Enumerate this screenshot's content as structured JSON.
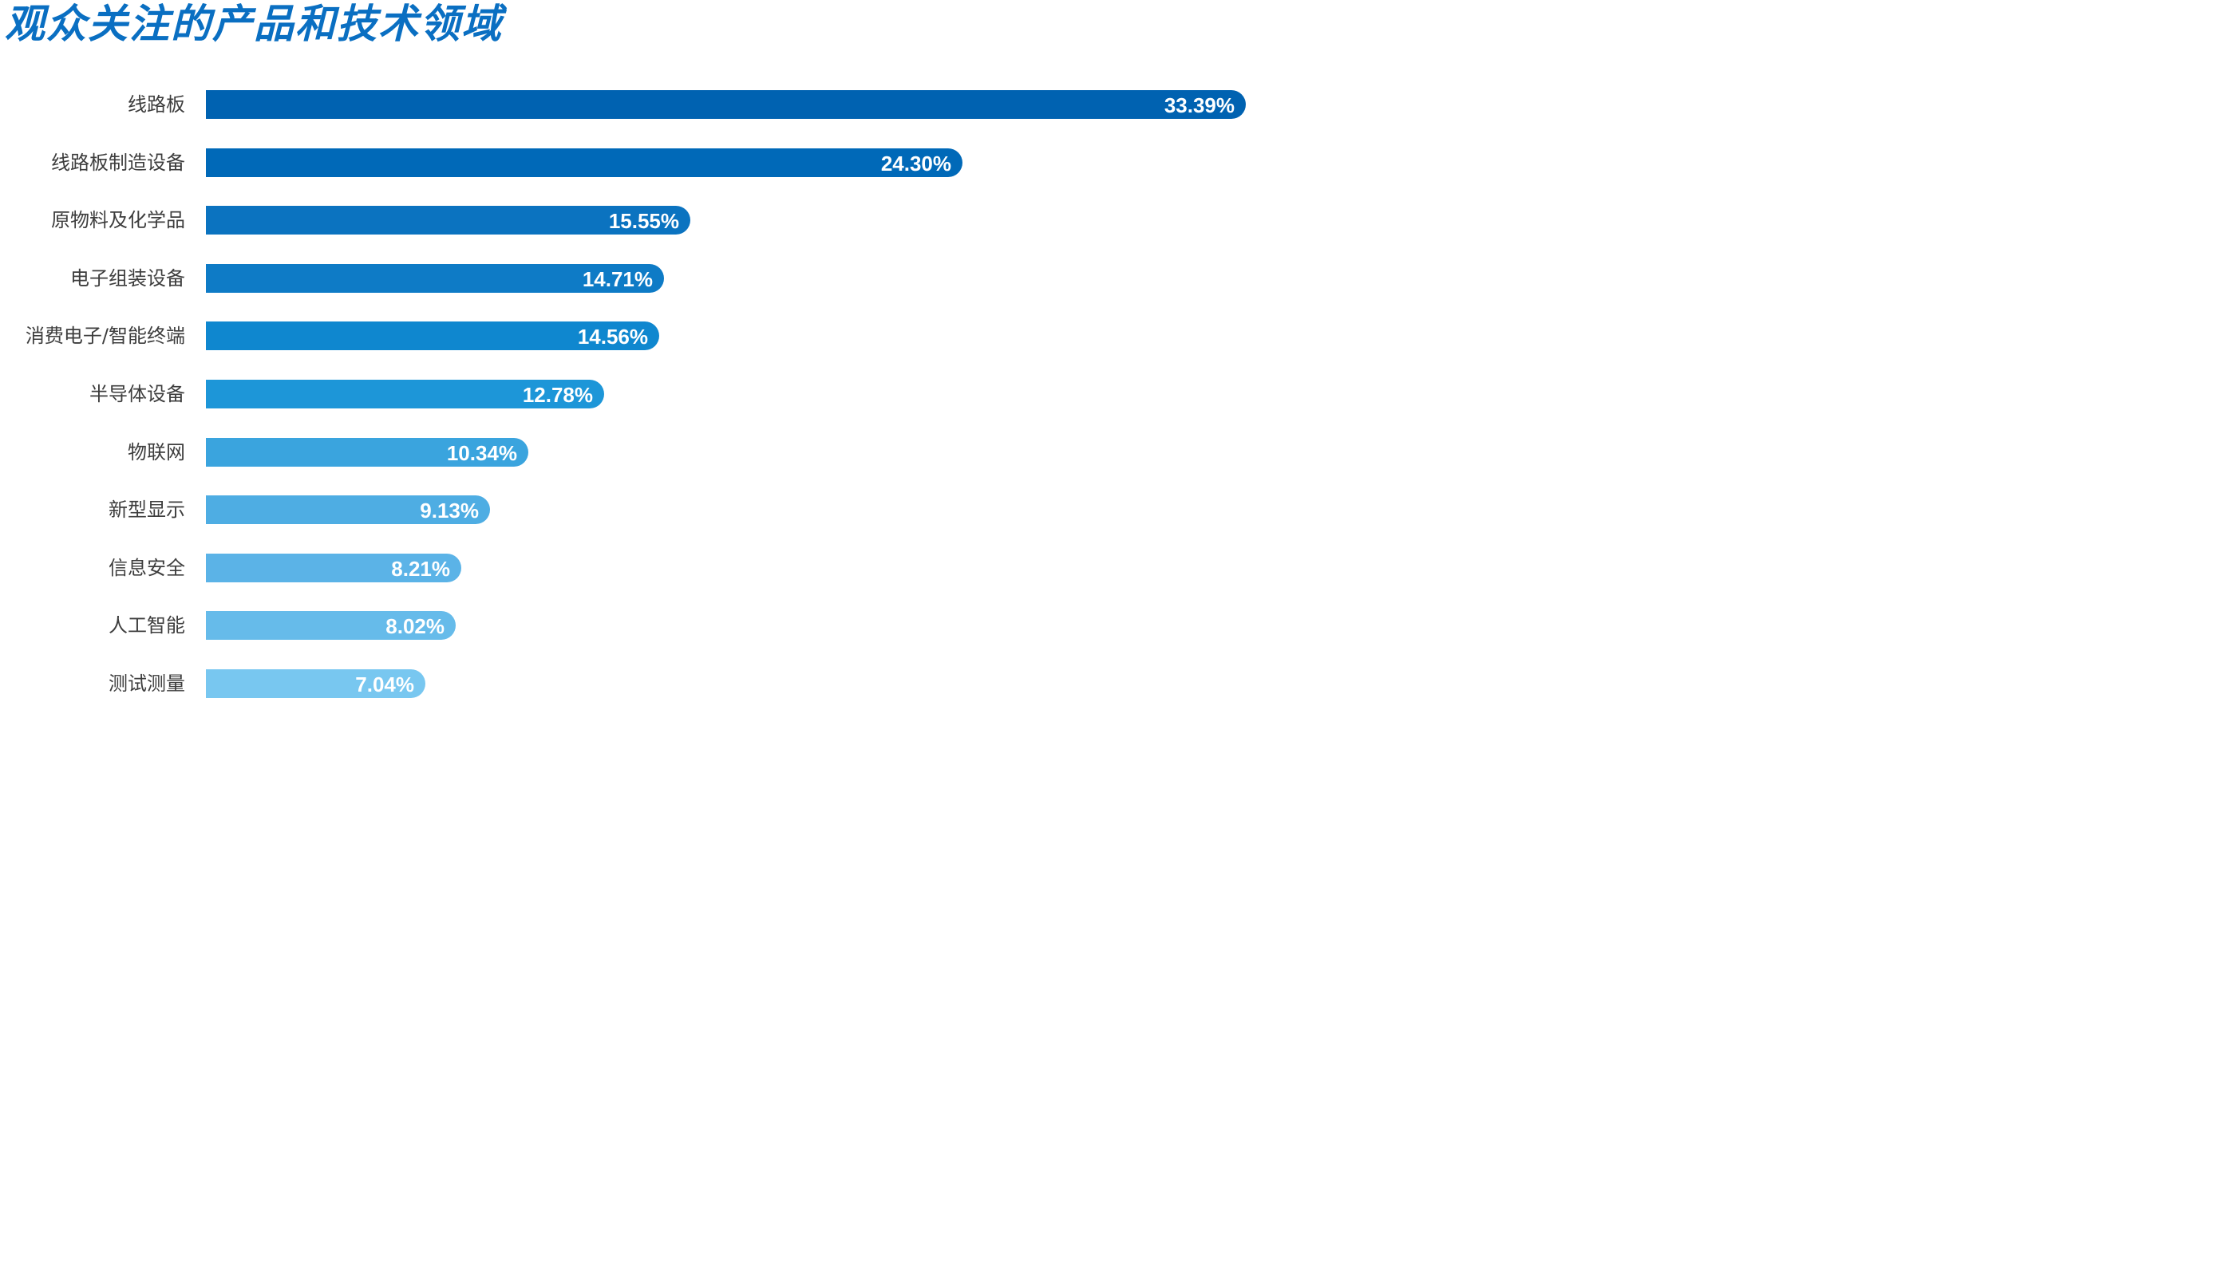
{
  "chart_data": {
    "type": "bar",
    "orientation": "horizontal",
    "title": "观众关注的产品和技术领域",
    "categories": [
      "线路板",
      "线路板制造设备",
      "原物料及化学品",
      "电子组装设备",
      "消费电子/智能终端",
      "半导体设备",
      "物联网",
      "新型显示",
      "信息安全",
      "人工智能",
      "测试测量"
    ],
    "values": [
      33.39,
      24.3,
      15.55,
      14.71,
      14.56,
      12.78,
      10.34,
      9.13,
      8.21,
      8.02,
      7.04
    ],
    "value_labels": [
      "33.39%",
      "24.30%",
      "15.55%",
      "14.71%",
      "14.56%",
      "12.78%",
      "10.34%",
      "9.13%",
      "8.21%",
      "8.02%",
      "7.04%"
    ],
    "unit": "%",
    "colors": [
      "#0062b1",
      "#0069b8",
      "#0b73c0",
      "#0e7bc6",
      "#0f87cf",
      "#1d96d8",
      "#3aa4de",
      "#4eade3",
      "#5bb3e7",
      "#66bbea",
      "#78c7f0"
    ],
    "title_color": "#0a6fc2",
    "xlabel": "",
    "ylabel": "",
    "grid": false,
    "legend": false
  }
}
